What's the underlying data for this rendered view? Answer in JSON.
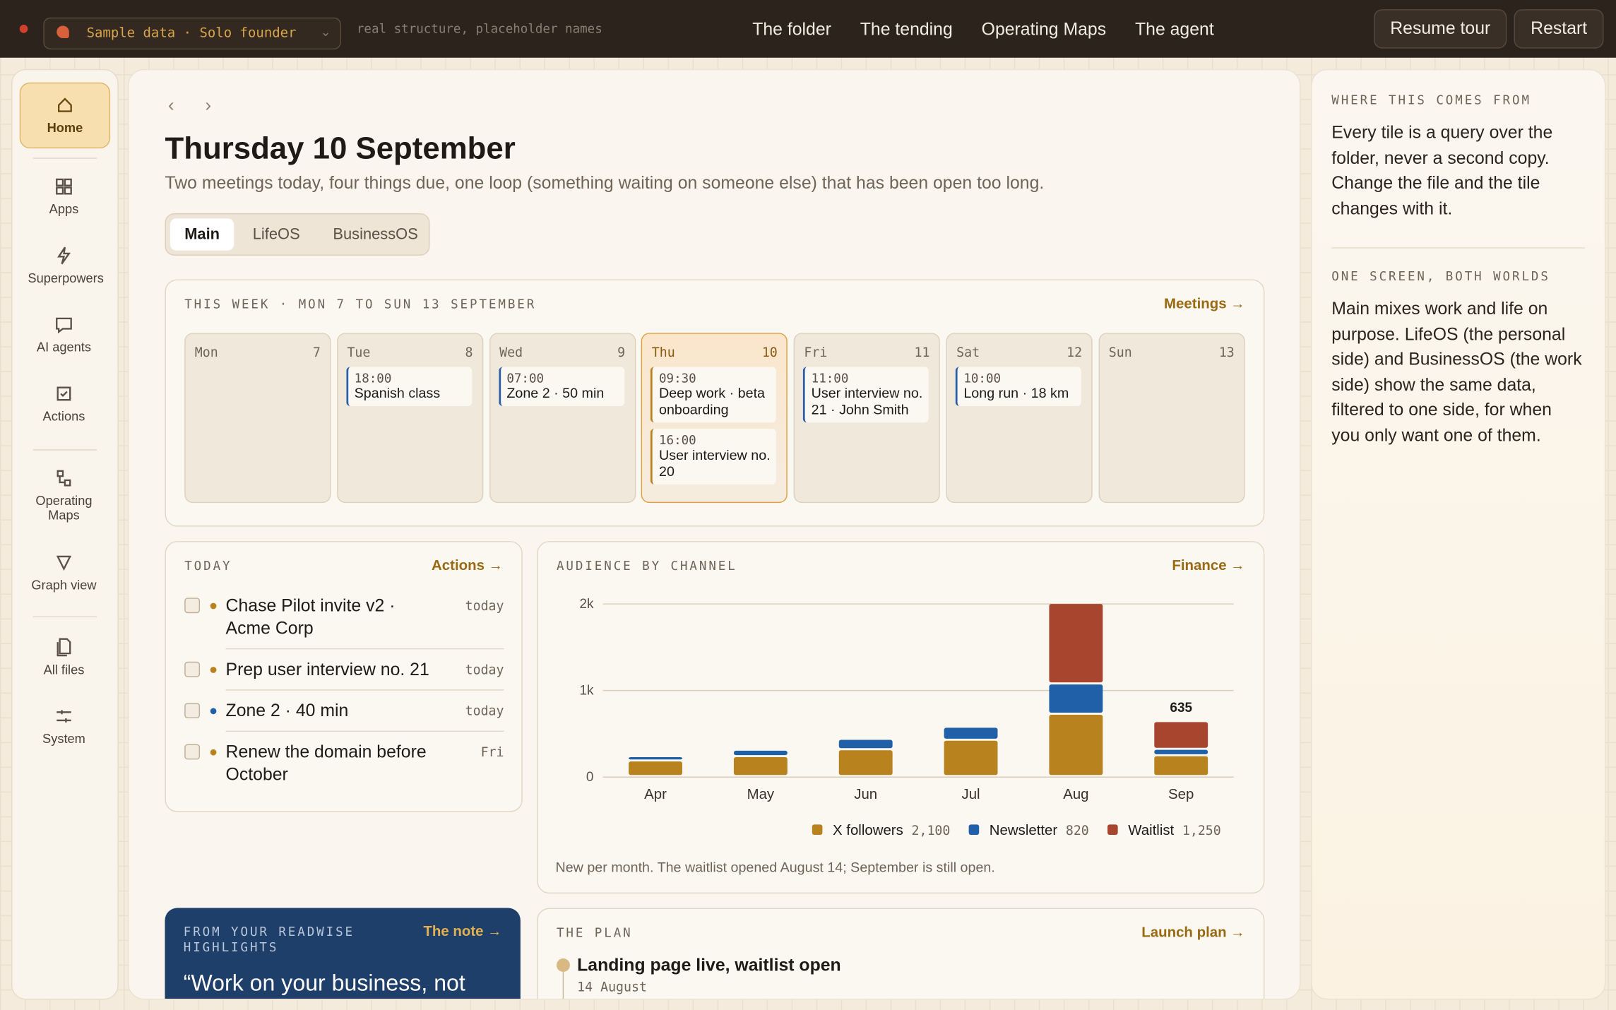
{
  "topbar": {
    "badge": "Sample data · Solo founder",
    "hint": "real structure, placeholder names",
    "nav": [
      "The folder",
      "The tending",
      "Operating Maps",
      "The agent"
    ],
    "buttons": [
      "Resume tour",
      "Restart"
    ]
  },
  "sidebar": [
    "Home",
    "Apps",
    "Superpowers",
    "AI agents",
    "Actions",
    "Operating Maps",
    "Graph view",
    "All files",
    "System"
  ],
  "header": {
    "title": "Thursday 10 September",
    "subtitle": "Two meetings today, four things due, one loop (something waiting on someone else) that has been open too long."
  },
  "tabs": [
    "Main",
    "LifeOS",
    "BusinessOS"
  ],
  "week": {
    "title": "THIS WEEK · MON 7 TO SUN 13 SEPTEMBER",
    "link": "Meetings →",
    "days": [
      {
        "name": "Mon",
        "date": 7,
        "events": []
      },
      {
        "name": "Tue",
        "date": 8,
        "events": [
          {
            "time": "18:00",
            "text": "Spanish class"
          }
        ]
      },
      {
        "name": "Wed",
        "date": 9,
        "events": [
          {
            "time": "07:00",
            "text": "Zone 2 · 50 min"
          }
        ]
      },
      {
        "name": "Thu",
        "date": 10,
        "events": [
          {
            "time": "09:30",
            "text": "Deep work · beta onboarding"
          },
          {
            "time": "16:00",
            "text": "User interview no. 20"
          }
        ]
      },
      {
        "name": "Fri",
        "date": 11,
        "events": [
          {
            "time": "11:00",
            "text": "User interview no. 21 · John Smith"
          }
        ]
      },
      {
        "name": "Sat",
        "date": 12,
        "events": [
          {
            "time": "10:00",
            "text": "Long run · 18 km"
          }
        ]
      },
      {
        "name": "Sun",
        "date": 13,
        "events": []
      }
    ]
  },
  "today": {
    "title": "TODAY",
    "link": "Actions →",
    "items": [
      {
        "text": "Chase Pilot invite v2 · Acme Corp",
        "due": "today",
        "color": "#b8821f"
      },
      {
        "text": "Prep user interview no. 21",
        "due": "today",
        "color": "#b8821f"
      },
      {
        "text": "Zone 2 · 40 min",
        "due": "today",
        "color": "#2060a8"
      },
      {
        "text": "Renew the domain before October",
        "due": "Fri",
        "color": "#b8821f"
      }
    ]
  },
  "chart_data": {
    "type": "stacked-bar",
    "title": "AUDIENCE BY CHANNEL",
    "link": "Finance →",
    "categories": [
      "Apr",
      "May",
      "Jun",
      "Jul",
      "Aug",
      "Sep"
    ],
    "series": [
      {
        "name": "X followers",
        "color": "#b8821f",
        "values": [
          180,
          230,
          310,
          420,
          720,
          240
        ],
        "total": {
          "value": 2100,
          "label": "2,100"
        }
      },
      {
        "name": "Newsletter",
        "color": "#2060a8",
        "values": [
          50,
          75,
          120,
          150,
          350,
          75
        ],
        "total": 820
      },
      {
        "name": "Waitlist",
        "color": "#a8452f",
        "values": [
          null,
          null,
          null,
          null,
          930,
          320
        ],
        "total": {
          "value": 1250,
          "label": "1,250"
        }
      }
    ],
    "annotation": {
      "x": "Sep",
      "text": "635"
    },
    "ylim": [
      0,
      2000
    ],
    "yticks": [
      0,
      {
        "value": 1000,
        "label": "1k"
      },
      {
        "value": 2000,
        "label": "2k"
      }
    ],
    "grid": true,
    "note": "New per month. The waitlist opened August 14; September is still open."
  },
  "readwise": {
    "title": "FROM YOUR READWISE HIGHLIGHTS",
    "link": "The note →",
    "quote": "“Work on your business, not"
  },
  "plan": {
    "title": "THE PLAN",
    "link": "Launch plan →",
    "items": [
      {
        "text": "Landing page live, waitlist open",
        "date": "14 August"
      }
    ]
  },
  "aside": [
    {
      "title": "WHERE THIS COMES FROM",
      "text": "Every tile is a query over the folder, never a second copy. Change the file and the tile changes with it."
    },
    {
      "title": "ONE SCREEN, BOTH WORLDS",
      "text": "Main mixes work and life on purpose. LifeOS (the personal side) and BusinessOS (the work side) show the same data, filtered to one side, for when you only want one of them."
    }
  ]
}
